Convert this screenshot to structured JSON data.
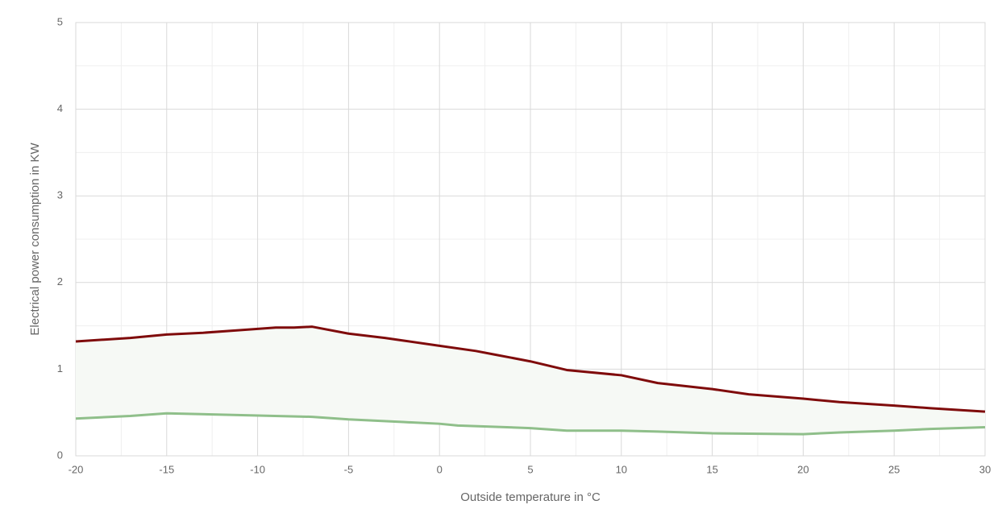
{
  "chart_data": {
    "type": "line",
    "x_label": "Outside temperature in °C",
    "y_label": "Electrical power consumption in KW",
    "xlim": [
      -20,
      30
    ],
    "ylim": [
      0,
      5
    ],
    "xticks": [
      -20,
      -15,
      -10,
      -5,
      0,
      5,
      10,
      15,
      20,
      25,
      30
    ],
    "yticks": [
      0,
      1,
      2,
      3,
      4,
      5
    ],
    "grid": true,
    "minor_grid": true,
    "fill_between": true,
    "fill_color": "#f6f9f5",
    "series": [
      {
        "color": "#7f0b0b",
        "x": [
          -20,
          -17,
          -15,
          -13,
          -11,
          -9,
          -8,
          -7,
          -5,
          -3,
          -2,
          0,
          2,
          3,
          5,
          7,
          10,
          12,
          15,
          17,
          20,
          22,
          25,
          27,
          30
        ],
        "values": [
          1.32,
          1.36,
          1.4,
          1.42,
          1.45,
          1.48,
          1.48,
          1.49,
          1.41,
          1.36,
          1.33,
          1.27,
          1.21,
          1.17,
          1.09,
          0.99,
          0.93,
          0.84,
          0.77,
          0.71,
          0.66,
          0.62,
          0.58,
          0.55,
          0.51
        ]
      },
      {
        "color": "#8fbf8a",
        "x": [
          -20,
          -17,
          -15,
          -7,
          -5,
          -2,
          0,
          1,
          5,
          7,
          10,
          12,
          15,
          20,
          22,
          25,
          27,
          30
        ],
        "values": [
          0.43,
          0.46,
          0.49,
          0.45,
          0.42,
          0.39,
          0.37,
          0.35,
          0.32,
          0.29,
          0.29,
          0.28,
          0.26,
          0.25,
          0.27,
          0.29,
          0.31,
          0.33
        ]
      }
    ]
  }
}
